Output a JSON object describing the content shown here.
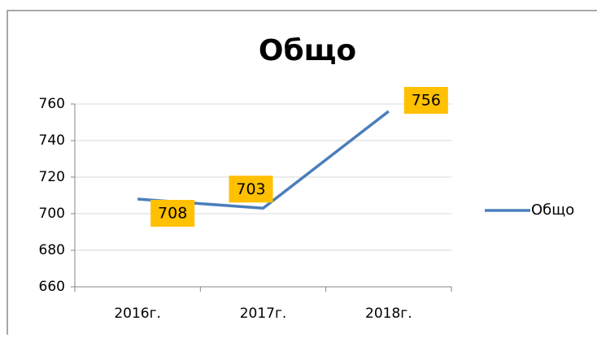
{
  "chart_data": {
    "type": "line",
    "title": "Общо",
    "categories": [
      "2016г.",
      "2017г.",
      "2018г."
    ],
    "series": [
      {
        "name": "Общо",
        "color": "#4a7ebb",
        "values": [
          708,
          703,
          756
        ]
      }
    ],
    "ylim": [
      660,
      760
    ],
    "yticks": [
      660,
      680,
      700,
      720,
      740,
      760
    ],
    "grid": true,
    "legend": "right",
    "label_color": "#ffc000"
  }
}
